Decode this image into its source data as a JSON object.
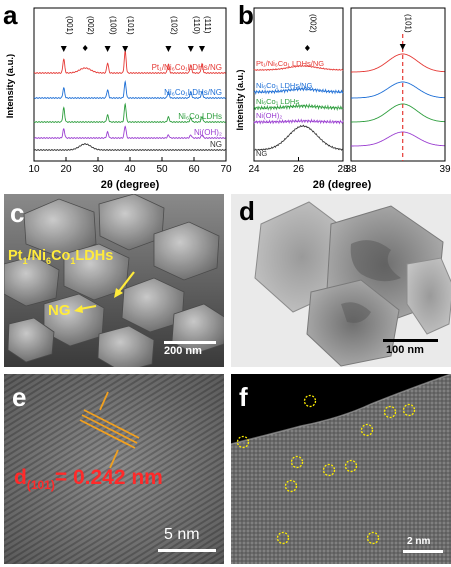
{
  "panels": {
    "a": {
      "label": "a",
      "xlabel": "2θ (degree)",
      "ylabel": "Intensity (a.u.)",
      "xticks": [
        "10",
        "20",
        "30",
        "40",
        "50",
        "60",
        "70"
      ],
      "peak_labels": [
        "(001)",
        "(002)",
        "(100)",
        "(101)",
        "(102)",
        "(110)",
        "(111)"
      ],
      "traces": [
        "Pt₁/Ni₆Co₁LDHs/NG",
        "Ni₆Co₁LDHs/NG",
        "Ni₆Co₁LDHs",
        "Ni(OH)₂",
        "NG"
      ]
    },
    "b": {
      "label": "b",
      "xlabel": "2θ (degree)",
      "ylabel": "Intensity (a.u.)",
      "left_xticks": [
        "24",
        "26",
        "28"
      ],
      "right_xticks": [
        "38",
        "39"
      ],
      "peak_left": "(002)",
      "peak_right": "(101)",
      "traces": [
        "Pt₁/Ni₆Co₁ LDHs/NG",
        "Ni₆Co₁ LDHs/NG",
        "Ni₆Co₁ LDHs",
        "Ni(OH)₂",
        "NG"
      ]
    },
    "c": {
      "label": "c",
      "annot_1": "Pt₁/Ni₆Co₁LDHs",
      "annot_2": "NG",
      "scale": "200 nm"
    },
    "d": {
      "label": "d",
      "scale": "100 nm"
    },
    "e": {
      "label": "e",
      "d_main": "d",
      "d_sub": "(101)",
      "d_value": "= 0.242 nm",
      "scale": "5 nm"
    },
    "f": {
      "label": "f",
      "scale": "2 nm"
    }
  },
  "chart_data": [
    {
      "type": "line",
      "xlabel": "2θ (degree)",
      "ylabel": "Intensity (a.u.)",
      "xlim": [
        10,
        70
      ],
      "series": [
        {
          "name": "Pt₁/Ni₆Co₁LDHs/NG",
          "color": "#e53935",
          "peaks": [
            19.3,
            26,
            33,
            38.5,
            52,
            59,
            62.5
          ]
        },
        {
          "name": "Ni₆Co₁LDHs/NG",
          "color": "#1e6fd6",
          "peaks": [
            19.3,
            33,
            38.5,
            52,
            59,
            62.5
          ]
        },
        {
          "name": "Ni₆Co₁LDHs",
          "color": "#2e9e3e",
          "peaks": [
            19.3,
            33,
            38.5,
            52,
            59,
            62.5
          ]
        },
        {
          "name": "Ni(OH)₂",
          "color": "#9b3fd1",
          "peaks": [
            19.3,
            33,
            38.5,
            52,
            59,
            62.5
          ]
        },
        {
          "name": "NG",
          "color": "#333333",
          "peaks": [
            26
          ]
        }
      ]
    },
    {
      "type": "line",
      "xlabel": "2θ (degree)",
      "ylabel": "Intensity (a.u.)",
      "xlim": [
        24,
        28
      ],
      "series": [
        {
          "name": "Pt₁/Ni₆Co₁ LDHs/NG",
          "color": "#e53935"
        },
        {
          "name": "Ni₆Co₁ LDHs/NG",
          "color": "#1e6fd6"
        },
        {
          "name": "Ni₆Co₁ LDHs",
          "color": "#2e9e3e"
        },
        {
          "name": "Ni(OH)₂",
          "color": "#9b3fd1"
        },
        {
          "name": "NG",
          "color": "#333333"
        }
      ]
    },
    {
      "type": "line",
      "xlim": [
        38,
        39
      ],
      "series": [
        {
          "color": "#e53935",
          "peak": 38.55
        },
        {
          "color": "#1e6fd6",
          "peak": 38.55
        },
        {
          "color": "#2e9e3e",
          "peak": 38.55
        },
        {
          "color": "#9b3fd1",
          "peak": 38.55
        }
      ]
    }
  ]
}
